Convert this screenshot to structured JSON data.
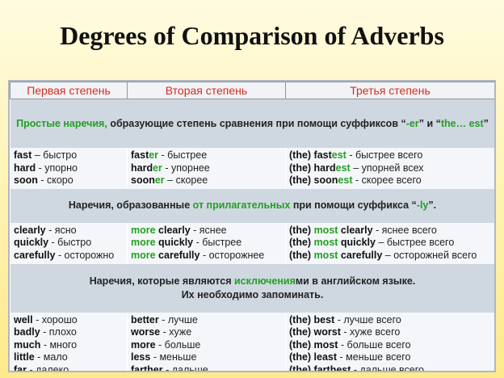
{
  "title": "Degrees of Comparison of Adverbs",
  "headers": [
    "Первая степень",
    "Вторая степень",
    "Третья степень"
  ],
  "section1": {
    "green_pre": "Простые наречия,",
    "text": " образующие степень сравнения при помощи суффиксов “",
    "suffix1": "-er",
    "mid": "” и “",
    "suffix2": "the… est",
    "end": "”"
  },
  "group1": [
    [
      "fast",
      " – быстро",
      "fast",
      "er",
      " - быстрее",
      "(the) fast",
      "est",
      " - быстрее всего"
    ],
    [
      "hard",
      " - упорно",
      "hard",
      "er",
      " - упорнее",
      "(the) hard",
      "est",
      " – упорней всех"
    ],
    [
      "soon",
      " - скоро",
      "soon",
      "er",
      " – скорее",
      "(the) soon",
      "est",
      " - скорее всего"
    ]
  ],
  "section2": {
    "pre": "Наречия, образованные ",
    "green": "от прилагательных",
    "mid": " при помощи суффикса “",
    "suffix": "-ly",
    "end": "”."
  },
  "group2": [
    [
      "clearly",
      " - ясно",
      "more",
      " clearly",
      " - яснее",
      "(the) ",
      "most",
      " clearly",
      " - яснее всего"
    ],
    [
      "quickly",
      " - быстро",
      "more",
      " quickly",
      " - быстрее",
      "(the) ",
      "most",
      " quickly",
      " – быстрее всего"
    ],
    [
      "carefully",
      " - осторожно",
      "more",
      " carefully",
      " - осторожнее",
      "(the) ",
      "most",
      " carefully",
      " – осторожней всего"
    ]
  ],
  "section3": {
    "pre": "Наречия, которые являются ",
    "green": "исключения",
    "post": "ми в английском языке.",
    "line2": "Их необходимо запоминать."
  },
  "group3": [
    [
      "well",
      " - хорошо",
      "better",
      " - лучше",
      "(the) best",
      " - лучше всего"
    ],
    [
      "badly",
      " - плохо",
      "worse",
      " - хуже",
      "(the) worst",
      " - хуже всего"
    ],
    [
      "much",
      " - много",
      "more",
      " - больше",
      "(the) most",
      " - больше всего"
    ],
    [
      "little",
      " - мало",
      "less",
      " - меньше",
      "(the) least",
      " - меньше всего"
    ],
    [
      "far",
      " - далеко",
      "farther",
      " - дальше",
      "(the) farthest",
      " - дальше всего"
    ]
  ]
}
